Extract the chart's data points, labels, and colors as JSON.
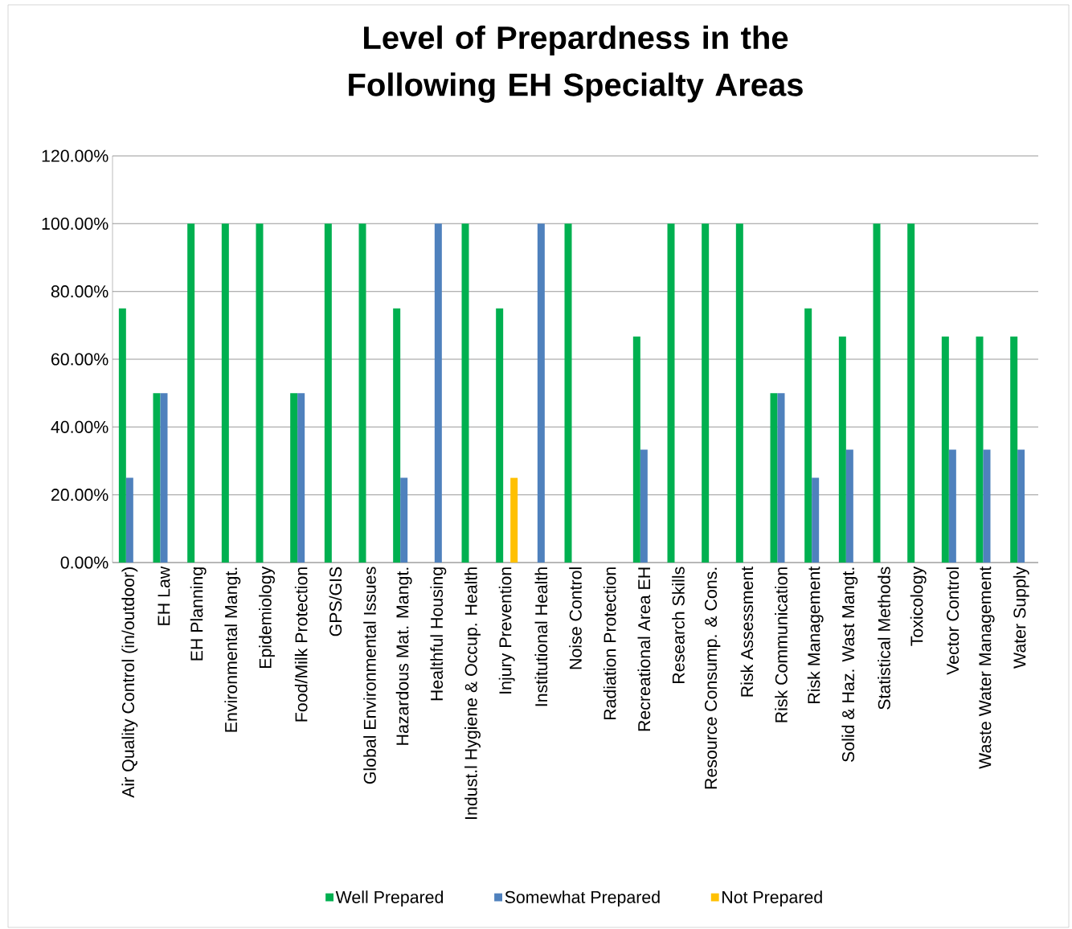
{
  "chart_data": {
    "type": "bar",
    "title": "Level of Prepardness in the Following EH Specialty Areas",
    "categories": [
      "Air Quality Control (in/outdoor)",
      "EH Law",
      "EH Planning",
      "Environmental Mangt.",
      "Epidemiology",
      "Food/Milk Protection",
      "GPS/GIS",
      "Global Environmental Issues",
      "Hazardous Mat. Mangt.",
      "Healthful Housing",
      "Indust.l Hygiene & Occup. Health",
      "Injury Prevention",
      "Institutional Health",
      "Noise Control",
      "Radiation Protection",
      "Recreational Area EH",
      "Research Skills",
      "Resource Consump. & Cons.",
      "Risk Assessment",
      "Risk Communication",
      "Risk Management",
      "Solid & Haz. Wast Mangt.",
      "Statistical Methods",
      "Toxicology",
      "Vector Control",
      "Waste Water Management",
      "Water Supply"
    ],
    "series": [
      {
        "name": "Well Prepared",
        "color": "#00b050",
        "values": [
          75,
          50,
          100,
          100,
          100,
          50,
          100,
          100,
          75,
          0,
          100,
          75,
          0,
          100,
          0,
          66.7,
          100,
          100,
          100,
          50,
          75,
          66.7,
          100,
          100,
          66.7,
          66.7,
          66.7
        ]
      },
      {
        "name": "Somewhat Prepared",
        "color": "#4f81bd",
        "values": [
          25,
          50,
          0,
          0,
          0,
          50,
          0,
          0,
          25,
          100,
          0,
          0,
          100,
          0,
          0,
          33.3,
          0,
          0,
          0,
          50,
          25,
          33.3,
          0,
          0,
          33.3,
          33.3,
          33.3
        ]
      },
      {
        "name": "Not Prepared",
        "color": "#ffc000",
        "values": [
          0,
          0,
          0,
          0,
          0,
          0,
          0,
          0,
          0,
          0,
          0,
          25,
          0,
          0,
          0,
          0,
          0,
          0,
          0,
          0,
          0,
          0,
          0,
          0,
          0,
          0,
          0
        ]
      }
    ],
    "ylim": [
      0,
      120
    ],
    "yticks": [
      {
        "value": 0,
        "label": "0.00%"
      },
      {
        "value": 20,
        "label": "20.00%"
      },
      {
        "value": 40,
        "label": "40.00%"
      },
      {
        "value": 60,
        "label": "60.00%"
      },
      {
        "value": 80,
        "label": "80.00%"
      },
      {
        "value": 100,
        "label": "100.00%"
      },
      {
        "value": 120,
        "label": "120.00%"
      }
    ],
    "grid": "y",
    "legend": "bottom"
  }
}
